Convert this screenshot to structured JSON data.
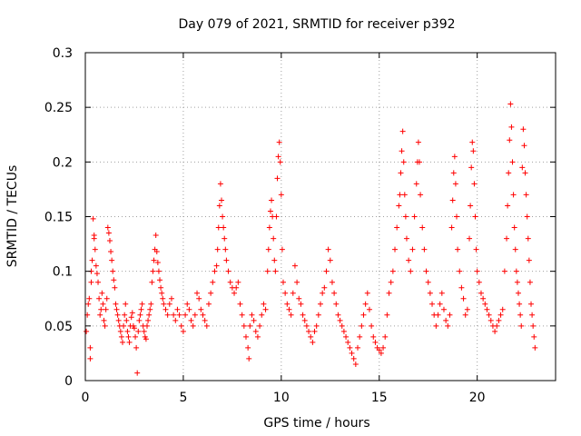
{
  "chart_data": {
    "type": "scatter",
    "title": "Day 079 of 2021, SRMTID for receiver p392",
    "xlabel": "GPS time / hours",
    "ylabel": "SRMTID / TECUs",
    "xlim": [
      0,
      24
    ],
    "ylim": [
      0,
      0.3
    ],
    "xticks": [
      0,
      5,
      10,
      15,
      20
    ],
    "xtick_labels": [
      "0",
      "5",
      "10",
      "15",
      "20"
    ],
    "yticks": [
      0,
      0.05,
      0.1,
      0.15,
      0.2,
      0.25,
      0.3
    ],
    "ytick_labels": [
      "0",
      "0.05",
      "0.1",
      "0.15",
      "0.2",
      "0.25",
      "0.3"
    ],
    "grid": true,
    "marker": "+",
    "color": "#ff0000",
    "series": [
      {
        "name": "SRMTID",
        "points": [
          [
            0.05,
            0.045
          ],
          [
            0.1,
            0.06
          ],
          [
            0.15,
            0.07
          ],
          [
            0.2,
            0.075
          ],
          [
            0.25,
            0.03
          ],
          [
            0.25,
            0.02
          ],
          [
            0.3,
            0.09
          ],
          [
            0.3,
            0.1
          ],
          [
            0.35,
            0.11
          ],
          [
            0.4,
            0.148
          ],
          [
            0.45,
            0.133
          ],
          [
            0.45,
            0.13
          ],
          [
            0.5,
            0.12
          ],
          [
            0.55,
            0.105
          ],
          [
            0.6,
            0.098
          ],
          [
            0.65,
            0.09
          ],
          [
            0.7,
            0.075
          ],
          [
            0.75,
            0.06
          ],
          [
            0.8,
            0.065
          ],
          [
            0.85,
            0.08
          ],
          [
            0.9,
            0.07
          ],
          [
            0.95,
            0.055
          ],
          [
            1.0,
            0.05
          ],
          [
            1.05,
            0.065
          ],
          [
            1.1,
            0.075
          ],
          [
            1.15,
            0.14
          ],
          [
            1.2,
            0.135
          ],
          [
            1.25,
            0.128
          ],
          [
            1.3,
            0.118
          ],
          [
            1.35,
            0.11
          ],
          [
            1.4,
            0.1
          ],
          [
            1.45,
            0.092
          ],
          [
            1.5,
            0.085
          ],
          [
            1.55,
            0.07
          ],
          [
            1.6,
            0.065
          ],
          [
            1.65,
            0.06
          ],
          [
            1.7,
            0.055
          ],
          [
            1.75,
            0.05
          ],
          [
            1.8,
            0.045
          ],
          [
            1.85,
            0.04
          ],
          [
            1.9,
            0.035
          ],
          [
            1.95,
            0.05
          ],
          [
            2.0,
            0.06
          ],
          [
            2.05,
            0.07
          ],
          [
            2.1,
            0.055
          ],
          [
            2.15,
            0.045
          ],
          [
            2.2,
            0.04
          ],
          [
            2.25,
            0.035
          ],
          [
            2.3,
            0.05
          ],
          [
            2.35,
            0.058
          ],
          [
            2.4,
            0.062
          ],
          [
            2.45,
            0.05
          ],
          [
            2.5,
            0.048
          ],
          [
            2.55,
            0.04
          ],
          [
            2.6,
            0.03
          ],
          [
            2.65,
            0.007
          ],
          [
            2.7,
            0.045
          ],
          [
            2.75,
            0.055
          ],
          [
            2.8,
            0.06
          ],
          [
            2.85,
            0.065
          ],
          [
            2.9,
            0.07
          ],
          [
            2.95,
            0.05
          ],
          [
            3.0,
            0.045
          ],
          [
            3.05,
            0.04
          ],
          [
            3.1,
            0.038
          ],
          [
            3.15,
            0.05
          ],
          [
            3.2,
            0.055
          ],
          [
            3.25,
            0.06
          ],
          [
            3.3,
            0.065
          ],
          [
            3.35,
            0.07
          ],
          [
            3.4,
            0.09
          ],
          [
            3.45,
            0.1
          ],
          [
            3.5,
            0.11
          ],
          [
            3.55,
            0.12
          ],
          [
            3.6,
            0.133
          ],
          [
            3.65,
            0.118
          ],
          [
            3.7,
            0.108
          ],
          [
            3.75,
            0.1
          ],
          [
            3.8,
            0.092
          ],
          [
            3.85,
            0.085
          ],
          [
            3.9,
            0.08
          ],
          [
            3.95,
            0.075
          ],
          [
            4.0,
            0.07
          ],
          [
            4.1,
            0.065
          ],
          [
            4.2,
            0.06
          ],
          [
            4.3,
            0.07
          ],
          [
            4.4,
            0.075
          ],
          [
            4.5,
            0.06
          ],
          [
            4.6,
            0.055
          ],
          [
            4.7,
            0.065
          ],
          [
            4.8,
            0.06
          ],
          [
            4.9,
            0.05
          ],
          [
            5.0,
            0.045
          ],
          [
            5.1,
            0.06
          ],
          [
            5.2,
            0.07
          ],
          [
            5.3,
            0.065
          ],
          [
            5.4,
            0.055
          ],
          [
            5.5,
            0.05
          ],
          [
            5.6,
            0.06
          ],
          [
            5.7,
            0.08
          ],
          [
            5.8,
            0.075
          ],
          [
            5.9,
            0.065
          ],
          [
            6.0,
            0.06
          ],
          [
            6.1,
            0.055
          ],
          [
            6.2,
            0.05
          ],
          [
            6.3,
            0.07
          ],
          [
            6.4,
            0.08
          ],
          [
            6.5,
            0.09
          ],
          [
            6.6,
            0.1
          ],
          [
            6.7,
            0.105
          ],
          [
            6.75,
            0.12
          ],
          [
            6.8,
            0.14
          ],
          [
            6.85,
            0.16
          ],
          [
            6.9,
            0.18
          ],
          [
            6.95,
            0.165
          ],
          [
            7.0,
            0.15
          ],
          [
            7.05,
            0.14
          ],
          [
            7.1,
            0.13
          ],
          [
            7.15,
            0.12
          ],
          [
            7.2,
            0.11
          ],
          [
            7.3,
            0.1
          ],
          [
            7.4,
            0.09
          ],
          [
            7.5,
            0.085
          ],
          [
            7.6,
            0.08
          ],
          [
            7.7,
            0.085
          ],
          [
            7.8,
            0.09
          ],
          [
            7.9,
            0.07
          ],
          [
            8.0,
            0.06
          ],
          [
            8.1,
            0.05
          ],
          [
            8.2,
            0.04
          ],
          [
            8.3,
            0.03
          ],
          [
            8.35,
            0.02
          ],
          [
            8.4,
            0.05
          ],
          [
            8.5,
            0.06
          ],
          [
            8.6,
            0.055
          ],
          [
            8.7,
            0.045
          ],
          [
            8.8,
            0.04
          ],
          [
            8.9,
            0.05
          ],
          [
            9.0,
            0.06
          ],
          [
            9.1,
            0.07
          ],
          [
            9.2,
            0.065
          ],
          [
            9.3,
            0.1
          ],
          [
            9.35,
            0.12
          ],
          [
            9.4,
            0.14
          ],
          [
            9.45,
            0.155
          ],
          [
            9.5,
            0.165
          ],
          [
            9.55,
            0.15
          ],
          [
            9.6,
            0.13
          ],
          [
            9.65,
            0.11
          ],
          [
            9.7,
            0.1
          ],
          [
            9.75,
            0.15
          ],
          [
            9.8,
            0.185
          ],
          [
            9.85,
            0.205
          ],
          [
            9.9,
            0.218
          ],
          [
            9.95,
            0.2
          ],
          [
            10.0,
            0.17
          ],
          [
            10.05,
            0.12
          ],
          [
            10.1,
            0.09
          ],
          [
            10.2,
            0.08
          ],
          [
            10.3,
            0.07
          ],
          [
            10.4,
            0.065
          ],
          [
            10.5,
            0.06
          ],
          [
            10.6,
            0.08
          ],
          [
            10.7,
            0.105
          ],
          [
            10.8,
            0.09
          ],
          [
            10.9,
            0.075
          ],
          [
            11.0,
            0.07
          ],
          [
            11.1,
            0.06
          ],
          [
            11.2,
            0.055
          ],
          [
            11.3,
            0.05
          ],
          [
            11.4,
            0.045
          ],
          [
            11.5,
            0.04
          ],
          [
            11.6,
            0.035
          ],
          [
            11.7,
            0.045
          ],
          [
            11.8,
            0.05
          ],
          [
            11.9,
            0.06
          ],
          [
            12.0,
            0.07
          ],
          [
            12.1,
            0.08
          ],
          [
            12.2,
            0.085
          ],
          [
            12.3,
            0.1
          ],
          [
            12.4,
            0.12
          ],
          [
            12.5,
            0.11
          ],
          [
            12.6,
            0.09
          ],
          [
            12.7,
            0.08
          ],
          [
            12.8,
            0.07
          ],
          [
            12.9,
            0.06
          ],
          [
            13.0,
            0.055
          ],
          [
            13.1,
            0.05
          ],
          [
            13.2,
            0.045
          ],
          [
            13.3,
            0.04
          ],
          [
            13.4,
            0.035
          ],
          [
            13.5,
            0.03
          ],
          [
            13.6,
            0.025
          ],
          [
            13.7,
            0.02
          ],
          [
            13.8,
            0.015
          ],
          [
            13.9,
            0.03
          ],
          [
            14.0,
            0.04
          ],
          [
            14.1,
            0.05
          ],
          [
            14.2,
            0.06
          ],
          [
            14.3,
            0.07
          ],
          [
            14.4,
            0.08
          ],
          [
            14.5,
            0.065
          ],
          [
            14.6,
            0.05
          ],
          [
            14.7,
            0.04
          ],
          [
            14.8,
            0.035
          ],
          [
            14.9,
            0.03
          ],
          [
            15.0,
            0.028
          ],
          [
            15.1,
            0.025
          ],
          [
            15.2,
            0.03
          ],
          [
            15.3,
            0.04
          ],
          [
            15.4,
            0.06
          ],
          [
            15.5,
            0.08
          ],
          [
            15.6,
            0.09
          ],
          [
            15.7,
            0.1
          ],
          [
            15.8,
            0.12
          ],
          [
            15.9,
            0.14
          ],
          [
            16.0,
            0.16
          ],
          [
            16.05,
            0.17
          ],
          [
            16.1,
            0.19
          ],
          [
            16.15,
            0.21
          ],
          [
            16.2,
            0.228
          ],
          [
            16.25,
            0.2
          ],
          [
            16.3,
            0.17
          ],
          [
            16.35,
            0.15
          ],
          [
            16.4,
            0.13
          ],
          [
            16.5,
            0.11
          ],
          [
            16.6,
            0.1
          ],
          [
            16.7,
            0.12
          ],
          [
            16.8,
            0.15
          ],
          [
            16.9,
            0.18
          ],
          [
            16.95,
            0.2
          ],
          [
            17.0,
            0.218
          ],
          [
            17.05,
            0.2
          ],
          [
            17.1,
            0.17
          ],
          [
            17.2,
            0.14
          ],
          [
            17.3,
            0.12
          ],
          [
            17.4,
            0.1
          ],
          [
            17.5,
            0.09
          ],
          [
            17.6,
            0.08
          ],
          [
            17.7,
            0.07
          ],
          [
            17.8,
            0.06
          ],
          [
            17.9,
            0.05
          ],
          [
            18.0,
            0.06
          ],
          [
            18.1,
            0.07
          ],
          [
            18.2,
            0.08
          ],
          [
            18.3,
            0.065
          ],
          [
            18.4,
            0.055
          ],
          [
            18.5,
            0.05
          ],
          [
            18.6,
            0.06
          ],
          [
            18.7,
            0.14
          ],
          [
            18.75,
            0.165
          ],
          [
            18.8,
            0.19
          ],
          [
            18.85,
            0.205
          ],
          [
            18.9,
            0.18
          ],
          [
            18.95,
            0.15
          ],
          [
            19.0,
            0.12
          ],
          [
            19.1,
            0.1
          ],
          [
            19.2,
            0.085
          ],
          [
            19.3,
            0.075
          ],
          [
            19.4,
            0.06
          ],
          [
            19.5,
            0.065
          ],
          [
            19.6,
            0.13
          ],
          [
            19.65,
            0.16
          ],
          [
            19.7,
            0.195
          ],
          [
            19.75,
            0.218
          ],
          [
            19.8,
            0.21
          ],
          [
            19.85,
            0.18
          ],
          [
            19.9,
            0.15
          ],
          [
            19.95,
            0.12
          ],
          [
            20.0,
            0.1
          ],
          [
            20.1,
            0.09
          ],
          [
            20.2,
            0.08
          ],
          [
            20.3,
            0.075
          ],
          [
            20.4,
            0.07
          ],
          [
            20.5,
            0.065
          ],
          [
            20.6,
            0.06
          ],
          [
            20.7,
            0.055
          ],
          [
            20.8,
            0.05
          ],
          [
            20.9,
            0.045
          ],
          [
            21.0,
            0.05
          ],
          [
            21.1,
            0.055
          ],
          [
            21.2,
            0.06
          ],
          [
            21.3,
            0.065
          ],
          [
            21.4,
            0.1
          ],
          [
            21.5,
            0.13
          ],
          [
            21.55,
            0.16
          ],
          [
            21.6,
            0.19
          ],
          [
            21.65,
            0.22
          ],
          [
            21.7,
            0.253
          ],
          [
            21.75,
            0.232
          ],
          [
            21.8,
            0.2
          ],
          [
            21.85,
            0.17
          ],
          [
            21.9,
            0.14
          ],
          [
            21.95,
            0.12
          ],
          [
            22.0,
            0.1
          ],
          [
            22.05,
            0.09
          ],
          [
            22.1,
            0.08
          ],
          [
            22.15,
            0.07
          ],
          [
            22.2,
            0.06
          ],
          [
            22.25,
            0.05
          ],
          [
            22.3,
            0.195
          ],
          [
            22.35,
            0.23
          ],
          [
            22.4,
            0.215
          ],
          [
            22.45,
            0.19
          ],
          [
            22.5,
            0.17
          ],
          [
            22.55,
            0.15
          ],
          [
            22.6,
            0.13
          ],
          [
            22.65,
            0.11
          ],
          [
            22.7,
            0.09
          ],
          [
            22.75,
            0.07
          ],
          [
            22.8,
            0.06
          ],
          [
            22.85,
            0.05
          ],
          [
            22.9,
            0.04
          ],
          [
            22.95,
            0.03
          ]
        ]
      }
    ]
  }
}
